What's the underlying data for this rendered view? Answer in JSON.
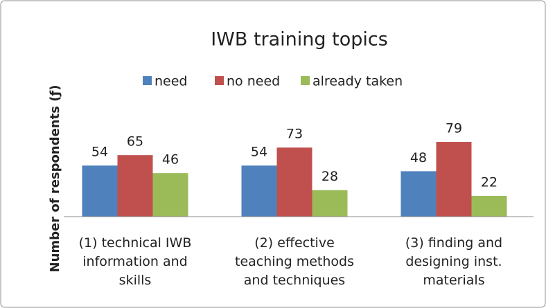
{
  "chart_data": {
    "type": "bar",
    "title": "IWB training topics",
    "y_label": "Number of respondents (ƒ)",
    "categories": [
      "(1) technical IWB information and skills",
      "(2) effective teaching methods and techniques",
      "(3) finding and designing inst. materials"
    ],
    "series": [
      {
        "name": "need",
        "color": "#4f81bd",
        "values": [
          54,
          54,
          48
        ]
      },
      {
        "name": "no need",
        "color": "#c0504d",
        "values": [
          65,
          73,
          79
        ]
      },
      {
        "name": "already taken",
        "color": "#9bbb59",
        "values": [
          46,
          28,
          22
        ]
      }
    ],
    "ylim": [
      0,
      90
    ],
    "legend": "top"
  }
}
